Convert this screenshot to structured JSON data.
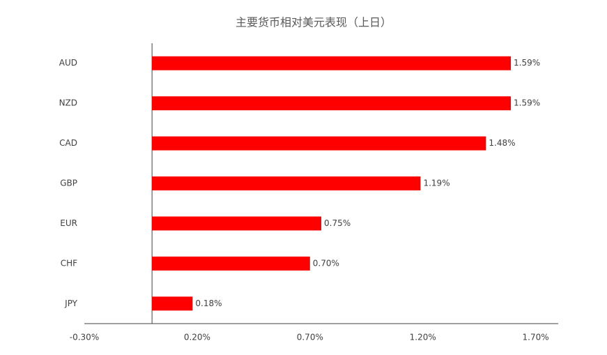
{
  "chart_data": {
    "type": "barh",
    "title": "主要货币相对美元表现（上日）",
    "categories": [
      "AUD",
      "NZD",
      "CAD",
      "GBP",
      "EUR",
      "CHF",
      "JPY"
    ],
    "values": [
      1.59,
      1.59,
      1.48,
      1.19,
      0.75,
      0.7,
      0.18
    ],
    "value_labels": [
      "1.59%",
      "1.59%",
      "1.48%",
      "1.19%",
      "0.75%",
      "0.70%",
      "0.18%"
    ],
    "color": "#ff0000",
    "xlim": [
      -0.3,
      1.8
    ],
    "xticks": [
      {
        "value": -0.3,
        "label": "-0.30%"
      },
      {
        "value": 0.2,
        "label": "0.20%"
      },
      {
        "value": 0.7,
        "label": "0.70%"
      },
      {
        "value": 1.2,
        "label": "1.20%"
      },
      {
        "value": 1.7,
        "label": "1.70%"
      }
    ]
  }
}
